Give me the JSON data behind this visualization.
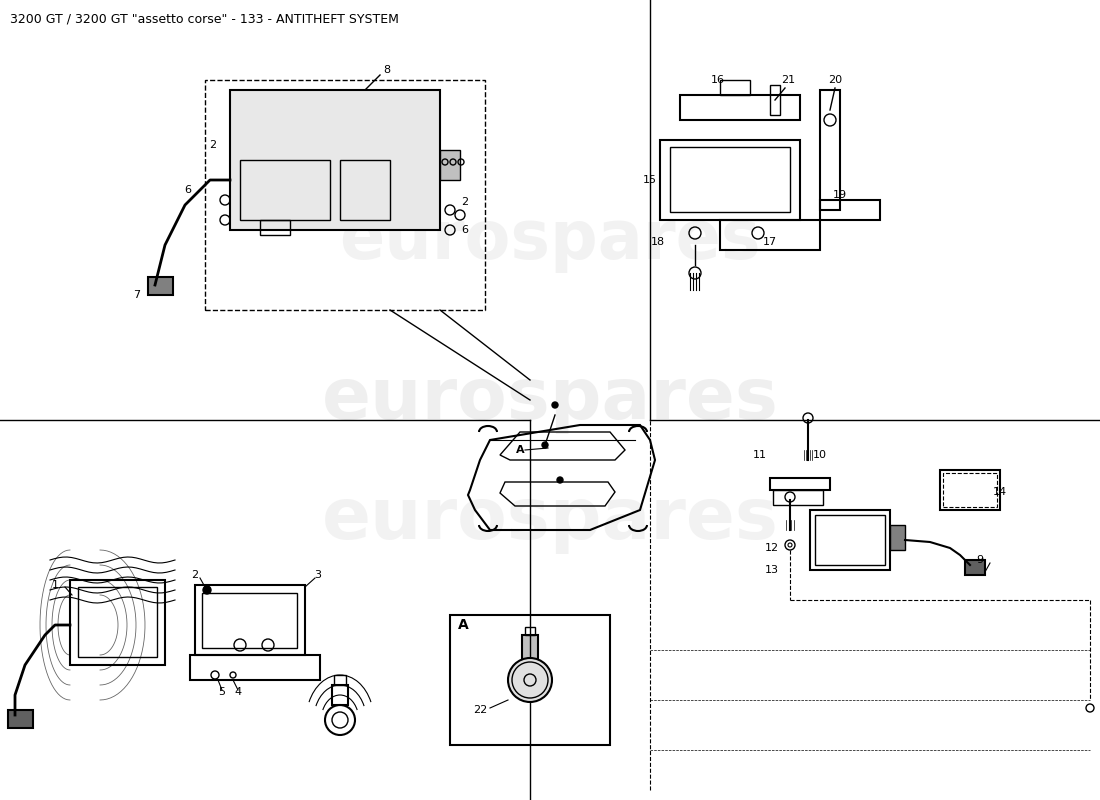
{
  "title": "3200 GT / 3200 GT \"assetto corse\" - 133 - ANTITHEFT SYSTEM",
  "title_fontsize": 9,
  "bg_color": "#ffffff",
  "line_color": "#000000",
  "watermark_color": "#d0d0d0",
  "watermark_text": "eurospares",
  "fig_width": 11.0,
  "fig_height": 8.0,
  "dpi": 100
}
